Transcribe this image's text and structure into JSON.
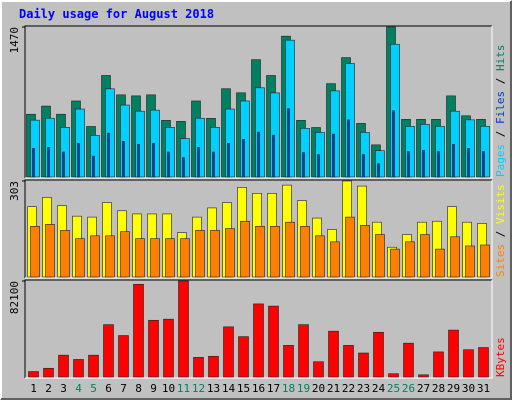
{
  "chart_data": [
    {
      "type": "bar",
      "title": "Daily usage for August 2018",
      "series": [
        {
          "name": "Hits",
          "color": "#008060",
          "values": [
            615,
            695,
            615,
            745,
            495,
            995,
            805,
            795,
            805,
            555,
            545,
            745,
            575,
            865,
            825,
            1150,
            995,
            1380,
            555,
            485,
            915,
            1170,
            525,
            315,
            1470,
            565,
            565,
            565,
            795,
            600,
            565
          ]
        },
        {
          "name": "Files",
          "color": "#0040c0",
          "values": [
            280,
            290,
            245,
            330,
            205,
            430,
            350,
            320,
            330,
            245,
            190,
            290,
            245,
            330,
            370,
            440,
            410,
            670,
            240,
            220,
            420,
            560,
            220,
            130,
            650,
            250,
            260,
            250,
            320,
            280,
            250
          ]
        },
        {
          "name": "Pages",
          "color": "#00d0ff",
          "values": [
            557,
            576,
            487,
            666,
            407,
            864,
            705,
            645,
            655,
            487,
            377,
            576,
            487,
            666,
            745,
            874,
            824,
            1341,
            477,
            437,
            844,
            1112,
            437,
            258,
            1301,
            497,
            516,
            497,
            645,
            560,
            497
          ]
        }
      ],
      "ylim": [
        0,
        1470
      ],
      "yticks": [
        1470
      ]
    },
    {
      "type": "bar",
      "series": [
        {
          "name": "Visits",
          "color": "#ffff00",
          "values": [
            222,
            251,
            225,
            192,
            189,
            235,
            209,
            199,
            199,
            199,
            140,
            189,
            218,
            235,
            283,
            264,
            264,
            290,
            241,
            186,
            150,
            303,
            287,
            173,
            94,
            134,
            173,
            176,
            222,
            173,
            169
          ]
        },
        {
          "name": "Sites",
          "color": "#ff8000",
          "values": [
            160,
            166,
            147,
            121,
            130,
            130,
            143,
            121,
            121,
            121,
            121,
            147,
            147,
            153,
            176,
            160,
            160,
            173,
            160,
            130,
            111,
            189,
            163,
            134,
            88,
            111,
            134,
            88,
            127,
            98,
            101
          ]
        }
      ],
      "ylim": [
        0,
        303
      ],
      "yticks": [
        303
      ]
    },
    {
      "type": "bar",
      "categories": [
        "1",
        "2",
        "3",
        "4",
        "5",
        "6",
        "7",
        "8",
        "9",
        "10",
        "11",
        "12",
        "13",
        "14",
        "15",
        "16",
        "17",
        "18",
        "19",
        "20",
        "21",
        "22",
        "23",
        "24",
        "25",
        "26",
        "27",
        "28",
        "29",
        "30",
        "31"
      ],
      "category_color": "#000000",
      "weekend": [
        3,
        4,
        10,
        11,
        17,
        18,
        24,
        25
      ],
      "weekend_color": "#008060",
      "series": [
        {
          "name": "KBytes",
          "color": "#ff0000",
          "values": [
            4665,
            7464,
            18659,
            15000,
            18659,
            44782,
            35452,
            79302,
            48514,
            49447,
            82100,
            16793,
            17726,
            42916,
            34519,
            62508,
            60642,
            27056,
            44782,
            13061,
            39184,
            27056,
            20525,
            38251,
            2799,
            28922,
            1866,
            21458,
            40117,
            23324,
            25190
          ]
        }
      ],
      "ylim": [
        0,
        82100
      ],
      "yticks": [
        82100
      ]
    }
  ]
}
